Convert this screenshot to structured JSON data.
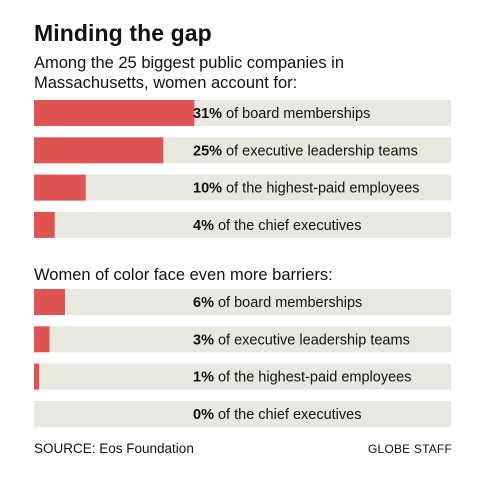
{
  "title": "Minding the gap",
  "subtitle": "Among the 25 biggest public companies in Massachusetts, women account for:",
  "section2_heading": "Women of color face even more barriers:",
  "source": "SOURCE: Eos Foundation",
  "credit": "GLOBE STAFF",
  "colors": {
    "bar": "#e05353",
    "track": "#e8e8e0"
  },
  "chart_data": [
    {
      "type": "bar",
      "orientation": "horizontal",
      "title": "Among the 25 biggest public companies in Massachusetts, women account for:",
      "xlim": [
        0,
        100
      ],
      "unit": "%",
      "categories": [
        "board memberships",
        "executive leadership teams",
        "the highest-paid employees",
        "the chief executives"
      ],
      "values": [
        31,
        25,
        10,
        4
      ],
      "labels": [
        "31%",
        "25%",
        "10%",
        "4%"
      ]
    },
    {
      "type": "bar",
      "orientation": "horizontal",
      "title": "Women of color face even more barriers:",
      "xlim": [
        0,
        100
      ],
      "unit": "%",
      "categories": [
        "board memberships",
        "executive leadership teams",
        "the highest-paid employees",
        "the chief executives"
      ],
      "values": [
        6,
        3,
        1,
        0
      ],
      "labels": [
        "6%",
        "3%",
        "1%",
        "0%"
      ]
    }
  ]
}
